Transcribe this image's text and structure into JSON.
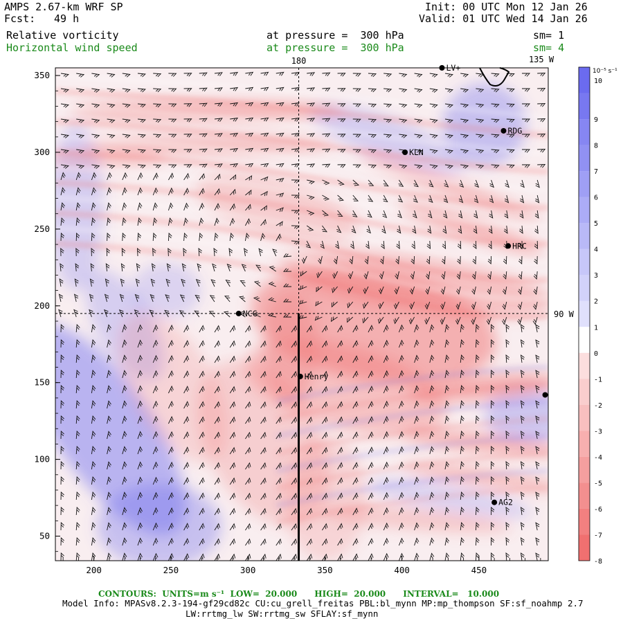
{
  "header": {
    "model": "AMPS 2.67-km WRF SP",
    "fcst_label": "Fcst:",
    "fcst_value": "49 h",
    "init": "Init: 00 UTC Mon 12 Jan 26",
    "valid": "Valid: 01 UTC Wed 14 Jan 26",
    "field1": "Relative vorticity",
    "field1_level": "at pressure =  300 hPa",
    "field1_sm": "sm= 1",
    "field2": "Horizontal wind speed",
    "field2_level": "at pressure =  300 hPa",
    "field2_sm": "sm= 4"
  },
  "map": {
    "meridian_180": "180",
    "meridian_135w": "135 W",
    "meridian_90w": "90 W",
    "x_ticks": [
      "200",
      "250",
      "300",
      "350",
      "400",
      "450"
    ],
    "y_ticks": [
      "350",
      "300",
      "250",
      "200",
      "150",
      "100",
      "50"
    ],
    "stations": [
      {
        "name": "LV+",
        "x": 426,
        "y": 355
      },
      {
        "name": "RDG",
        "x": 466,
        "y": 314
      },
      {
        "name": "KLN",
        "x": 402,
        "y": 300
      },
      {
        "name": "HRC",
        "x": 469,
        "y": 239
      },
      {
        "name": "NCC",
        "x": 294,
        "y": 195
      },
      {
        "name": "Henry",
        "x": 334,
        "y": 154
      },
      {
        "name": "",
        "x": 493,
        "y": 142
      },
      {
        "name": "AG2",
        "x": 460,
        "y": 72
      }
    ]
  },
  "colorbar": {
    "unit": "10⁻⁵ s⁻¹",
    "labels": [
      "10",
      "9",
      "8",
      "7",
      "6",
      "5",
      "4",
      "3",
      "2",
      "1",
      "0",
      "-1",
      "-2",
      "-3",
      "-4",
      "-5",
      "-6",
      "-7",
      "-8"
    ]
  },
  "footer": {
    "contours": "CONTOURS:  UNITS=m s⁻¹  LOW=  20.000      HIGH=  20.000      INTERVAL=   10.000",
    "model_info": "Model Info: MPASv8.2.3-194-gf29cd82c CU:cu_grell_freitas PBL:bl_mynn MP:mp_thompson SF:sf_noahmp 2.7",
    "model_info2": "LW:rrtmg_lw SW:rrtmg_sw SFLAY:sf_mynn"
  },
  "colors": {
    "positive": "#6b6bef",
    "negative": "#f07070",
    "contour": "#1a8a1a"
  }
}
